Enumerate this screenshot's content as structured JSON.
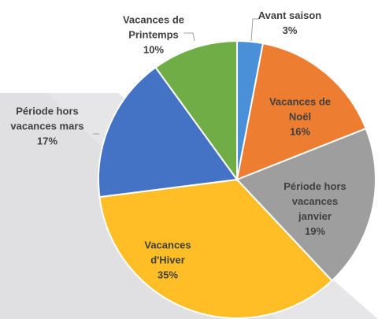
{
  "chart_data": {
    "type": "pie",
    "categories": [
      "Avant saison",
      "Vacances de Noël",
      "Période hors vacances janvier",
      "Vacances d'Hiver",
      "Période hors vacances mars",
      "Vacances de Printemps"
    ],
    "values": [
      3,
      16,
      19,
      35,
      17,
      10
    ],
    "value_labels": [
      "3%",
      "16%",
      "19%",
      "35%",
      "17%",
      "10%"
    ],
    "colors": [
      "#4a90d9",
      "#ed7d31",
      "#9e9e9e",
      "#ffbd26",
      "#4472c4",
      "#70ad47"
    ]
  }
}
